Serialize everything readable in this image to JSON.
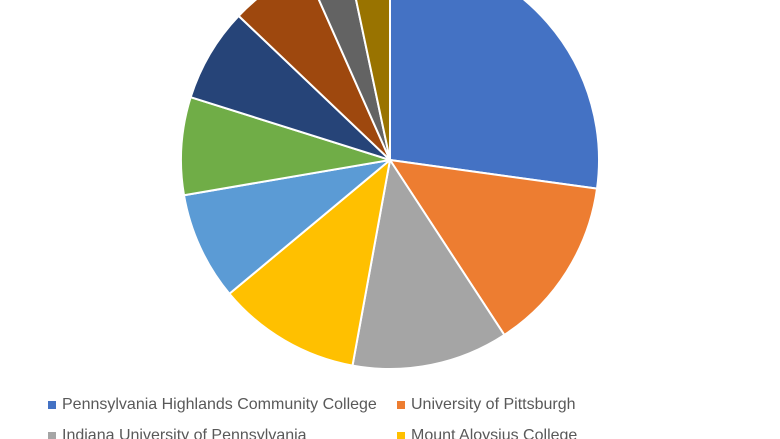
{
  "chart_data": {
    "type": "pie",
    "title": "",
    "categories": [
      "Pennsylvania Highlands Community College",
      "University of Pittsburgh",
      "Indiana University of Pennsylvania",
      "Mount Aloysius College",
      "",
      "",
      "",
      "",
      "",
      ""
    ],
    "values": [
      27,
      13.5,
      12,
      11,
      8.3,
      7.5,
      7.2,
      6.2,
      3.3,
      3.3
    ],
    "colors": [
      "#4472C4",
      "#ED7D31",
      "#A5A5A5",
      "#FFC000",
      "#5B9BD5",
      "#70AD47",
      "#264478",
      "#9E480E",
      "#636363",
      "#997300"
    ],
    "start_angle_degrees": 0,
    "direction": "clockwise",
    "legend_position": "bottom"
  },
  "legend": {
    "items": [
      {
        "label": "Pennsylvania Highlands Community College",
        "color": "#4472C4"
      },
      {
        "label": "University of Pittsburgh",
        "color": "#ED7D31"
      },
      {
        "label": "Indiana University of Pennsylvania",
        "color": "#A5A5A5"
      },
      {
        "label": "Mount Aloysius College",
        "color": "#FFC000"
      }
    ]
  }
}
